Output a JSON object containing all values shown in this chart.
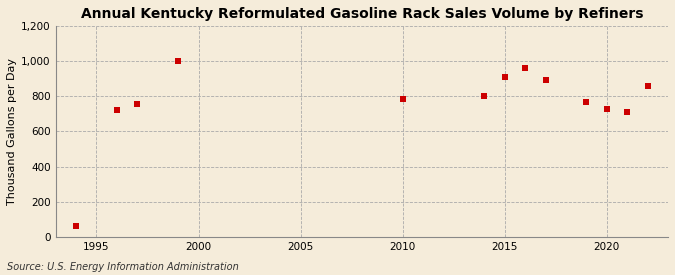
{
  "title": "Annual Kentucky Reformulated Gasoline Rack Sales Volume by Refiners",
  "ylabel": "Thousand Gallons per Day",
  "source": "Source: U.S. Energy Information Administration",
  "background_color": "#f5ecda",
  "plot_background_color": "#f5ecda",
  "marker_color": "#cc0000",
  "marker": "s",
  "marker_size": 4,
  "xlim": [
    1993,
    2023
  ],
  "ylim": [
    0,
    1200
  ],
  "yticks": [
    0,
    200,
    400,
    600,
    800,
    1000,
    1200
  ],
  "ytick_labels": [
    "0",
    "200",
    "400",
    "600",
    "800",
    "1,000",
    "1,200"
  ],
  "xticks": [
    1995,
    2000,
    2005,
    2010,
    2015,
    2020
  ],
  "data": [
    {
      "year": 1994,
      "value": 60
    },
    {
      "year": 1996,
      "value": 720
    },
    {
      "year": 1997,
      "value": 755
    },
    {
      "year": 1999,
      "value": 1002
    },
    {
      "year": 2010,
      "value": 785
    },
    {
      "year": 2014,
      "value": 805
    },
    {
      "year": 2015,
      "value": 910
    },
    {
      "year": 2016,
      "value": 960
    },
    {
      "year": 2017,
      "value": 895
    },
    {
      "year": 2019,
      "value": 770
    },
    {
      "year": 2020,
      "value": 730
    },
    {
      "year": 2021,
      "value": 710
    },
    {
      "year": 2022,
      "value": 860
    }
  ],
  "grid_color": "#aaaaaa",
  "grid_linestyle": "--",
  "grid_linewidth": 0.6,
  "title_fontsize": 10,
  "ylabel_fontsize": 8,
  "tick_fontsize": 7.5,
  "source_fontsize": 7
}
